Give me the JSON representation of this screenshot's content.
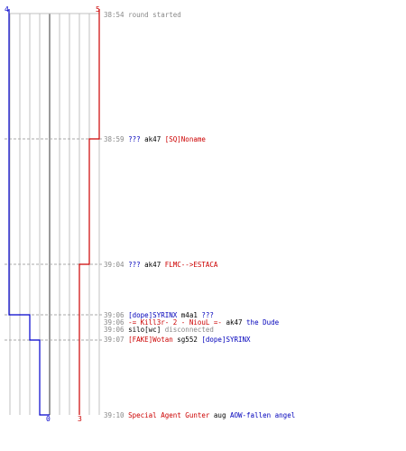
{
  "scores": {
    "blue_start": "4",
    "red_start": "5",
    "blue_end": "0",
    "red_end": "3"
  },
  "colors": {
    "blue_team": "#0000cc",
    "red_team": "#cc0000",
    "gridline": "#c0c0c0",
    "center_line": "#808080",
    "time_text": "#888888"
  },
  "events": [
    {
      "time": "38:54",
      "parts": [
        {
          "text": "round started",
          "style": "dim"
        }
      ]
    },
    {
      "time": "38:59",
      "parts": [
        {
          "text": "???",
          "style": "blue"
        },
        {
          "text": " ak47 ",
          "style": "plain"
        },
        {
          "text": "[SQ]Noname",
          "style": "red"
        }
      ]
    },
    {
      "time": "39:04",
      "parts": [
        {
          "text": "???",
          "style": "blue"
        },
        {
          "text": " ak47 ",
          "style": "plain"
        },
        {
          "text": "FLMC-->ESTACA",
          "style": "red"
        }
      ]
    },
    {
      "time": "39:06",
      "parts": [
        {
          "text": "[dope]SYRINX",
          "style": "blue"
        },
        {
          "text": " m4a1 ",
          "style": "plain"
        },
        {
          "text": "???",
          "style": "blue"
        }
      ]
    },
    {
      "time": "39:06",
      "parts": [
        {
          "text": "-= Kill3r- 2 - NiouL =-",
          "style": "red"
        },
        {
          "text": " ak47 ",
          "style": "plain"
        },
        {
          "text": "the Dude",
          "style": "blue"
        }
      ]
    },
    {
      "time": "39:06",
      "parts": [
        {
          "text": "silo[wc]",
          "style": "plain"
        },
        {
          "text": " disconnected",
          "style": "dim"
        }
      ]
    },
    {
      "time": "39:07",
      "parts": [
        {
          "text": "[FAKE]Wotan",
          "style": "red"
        },
        {
          "text": " sg552 ",
          "style": "plain"
        },
        {
          "text": "[dope]SYRINX",
          "style": "blue"
        }
      ]
    },
    {
      "time": "39:10",
      "parts": [
        {
          "text": "Special Agent Gunter",
          "style": "red"
        },
        {
          "text": " aug ",
          "style": "plain"
        },
        {
          "text": "AOW-fallen angel",
          "style": "blue"
        }
      ]
    }
  ]
}
